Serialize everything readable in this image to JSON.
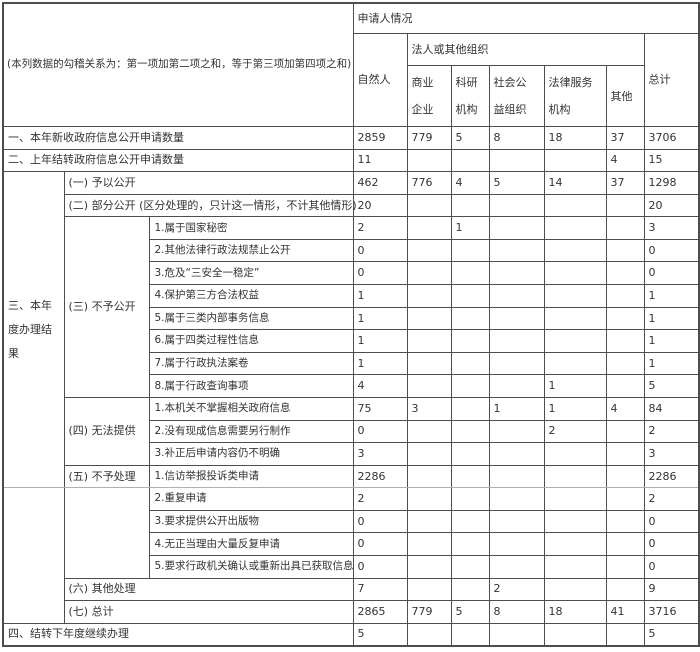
{
  "note": "(本列数据的勾稽关系为：第一项加第二项之和，等于第三项加第四项之和)",
  "header": {
    "applicant_group": "申请人情况",
    "natural_person": "自然人",
    "legal_org_group": "法人或其他组织",
    "org_cols": [
      "商业企业",
      "科研机构",
      "社会公益组织",
      "法律服务机构",
      "其他"
    ],
    "total": "总计"
  },
  "sections": [
    {
      "label": "一、本年新收政府信息公开申请数量",
      "values": [
        "2859",
        "779",
        "5",
        "8",
        "18",
        "37",
        "3706"
      ]
    },
    {
      "label": "二、上年结转政府信息公开申请数量",
      "values": [
        "11",
        "",
        "",
        "",
        "",
        "4",
        "15"
      ]
    },
    {
      "label": "三、本年度办理结果",
      "categories": [
        {
          "label": "(一) 予以公开",
          "values": [
            "462",
            "776",
            "4",
            "5",
            "14",
            "37",
            "1298"
          ]
        },
        {
          "label": "(二) 部分公开 (区分处理的，只计这一情形，不计其他情形)",
          "values": [
            "20",
            "",
            "",
            "",
            "",
            "",
            "20"
          ]
        },
        {
          "label": "(三) 不予公开",
          "items": [
            {
              "label": "1.属于国家秘密",
              "values": [
                "2",
                "",
                "1",
                "",
                "",
                "",
                "3"
              ]
            },
            {
              "label": "2.其他法律行政法规禁止公开",
              "values": [
                "0",
                "",
                "",
                "",
                "",
                "",
                "0"
              ]
            },
            {
              "label": "3.危及“三安全一稳定”",
              "values": [
                "0",
                "",
                "",
                "",
                "",
                "",
                "0"
              ]
            },
            {
              "label": "4.保护第三方合法权益",
              "values": [
                "1",
                "",
                "",
                "",
                "",
                "",
                "1"
              ]
            },
            {
              "label": "5.属于三类内部事务信息",
              "values": [
                "1",
                "",
                "",
                "",
                "",
                "",
                "1"
              ]
            },
            {
              "label": "6.属于四类过程性信息",
              "values": [
                "1",
                "",
                "",
                "",
                "",
                "",
                "1"
              ]
            },
            {
              "label": "7.属于行政执法案卷",
              "values": [
                "1",
                "",
                "",
                "",
                "",
                "",
                "1"
              ]
            },
            {
              "label": "8.属于行政查询事项",
              "values": [
                "4",
                "",
                "",
                "",
                "1",
                "",
                "5"
              ]
            }
          ]
        },
        {
          "label": "(四) 无法提供",
          "items": [
            {
              "label": "1.本机关不掌握相关政府信息",
              "values": [
                "75",
                "3",
                "",
                "1",
                "1",
                "4",
                "84"
              ]
            },
            {
              "label": "2.没有现成信息需要另行制作",
              "values": [
                "0",
                "",
                "",
                "",
                "2",
                "",
                "2"
              ]
            },
            {
              "label": "3.补正后申请内容仍不明确",
              "values": [
                "3",
                "",
                "",
                "",
                "",
                "",
                "3"
              ]
            }
          ]
        },
        {
          "label": "(五) 不予处理",
          "items": [
            {
              "label": "1.信访举报投诉类申请",
              "values": [
                "2286",
                "",
                "",
                "",
                "",
                "",
                "2286"
              ]
            },
            {
              "label": "2.重复申请",
              "values": [
                "2",
                "",
                "",
                "",
                "",
                "",
                "2"
              ]
            },
            {
              "label": "3.要求提供公开出版物",
              "values": [
                "0",
                "",
                "",
                "",
                "",
                "",
                "0"
              ]
            },
            {
              "label": "4.无正当理由大量反复申请",
              "values": [
                "0",
                "",
                "",
                "",
                "",
                "",
                "0"
              ]
            },
            {
              "label": "5.要求行政机关确认或重新出具已获取信息",
              "values": [
                "0",
                "",
                "",
                "",
                "",
                "",
                "0"
              ]
            }
          ]
        },
        {
          "label": "(六) 其他处理",
          "values": [
            "7",
            "",
            "",
            "2",
            "",
            "",
            "9"
          ]
        },
        {
          "label": "(七) 总计",
          "values": [
            "2865",
            "779",
            "5",
            "8",
            "18",
            "41",
            "3716"
          ]
        }
      ]
    },
    {
      "label": "四、结转下年度继续办理",
      "values": [
        "5",
        "",
        "",
        "",
        "",
        "",
        "5"
      ]
    }
  ],
  "colors": {
    "border": "#4d4d4d",
    "split_line": "#b0b0b0",
    "text": "#333333"
  }
}
